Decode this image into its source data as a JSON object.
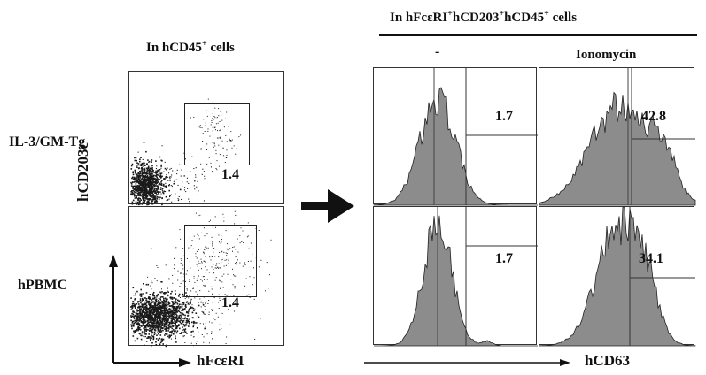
{
  "left": {
    "title_main": "In hCD45",
    "title_sup": "+",
    "title_tail": " cells",
    "rows": [
      {
        "label": "IL-3/GM-Tg",
        "gate_value": "1.4"
      },
      {
        "label": "hPBMC",
        "gate_value": "1.4"
      }
    ],
    "y_axis_label": "hCD203c",
    "x_axis_label": "hFcεRI"
  },
  "right": {
    "title_parts": [
      "In hFcεRI",
      "+",
      "hCD203",
      "+",
      "hCD45",
      "+",
      " cells"
    ],
    "columns": [
      "-",
      "Ionomycin"
    ],
    "values": [
      [
        "1.7",
        "42.8"
      ],
      [
        "1.7",
        "34.1"
      ]
    ],
    "x_axis_label": "hCD63"
  },
  "colors": {
    "ink": "#111111",
    "histogram_fill": "#8c8c8c",
    "dot": "#1a1a1a"
  }
}
